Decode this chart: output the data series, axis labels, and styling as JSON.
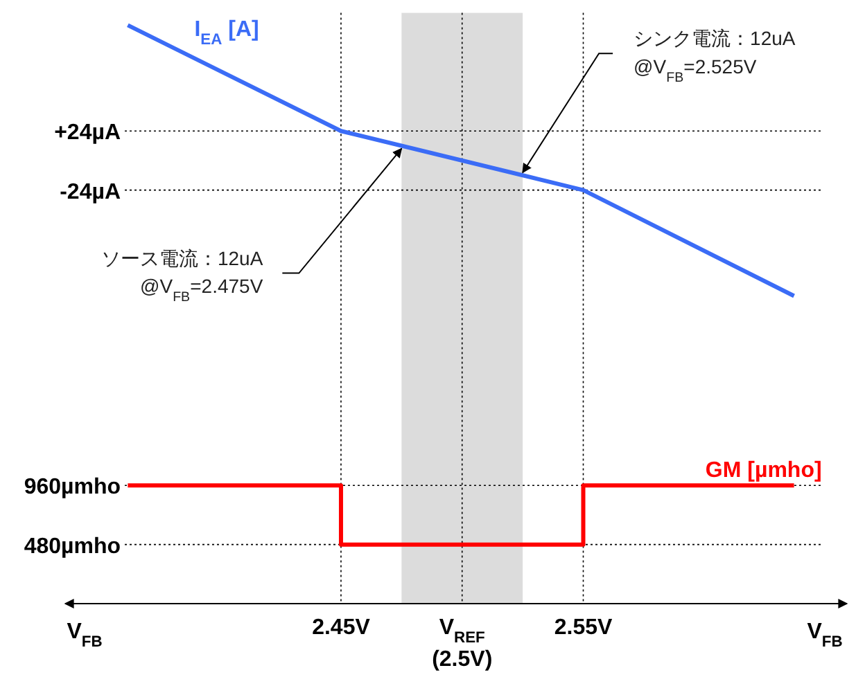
{
  "chart_data": {
    "type": "line",
    "xlim": [
      2.335,
      2.66
    ],
    "ylim": [
      -360,
      120
    ],
    "y2lim": [
      0,
      4800
    ],
    "xticks": [
      {
        "value": 2.45,
        "label": "2.45V"
      },
      {
        "value": 2.5,
        "label": "V$_{REF}$ (2.5V)"
      },
      {
        "value": 2.55,
        "label": "2.55V"
      }
    ],
    "yticks": [
      {
        "value": 24,
        "label": "+24µA"
      },
      {
        "value": -24,
        "label": "-24µA"
      }
    ],
    "y2ticks": [
      {
        "value": 960,
        "label": "960µmho"
      },
      {
        "value": 480,
        "label": "480µmho"
      }
    ],
    "grid": true,
    "xlabel": "V$_{FB}$",
    "bands": [
      {
        "axis": "x",
        "from": 2.475,
        "to": 2.525,
        "color": "#dcdcdc"
      }
    ],
    "series": [
      {
        "name": "I$_{EA}$ [A]",
        "color": "#3b6cf6",
        "x": [
          2.362,
          2.45,
          2.55,
          2.637
        ],
        "values": [
          110,
          24,
          -24,
          -110
        ]
      },
      {
        "name": "GM [µmho]",
        "type": "step",
        "axis": "y2",
        "color": "#ff0000",
        "x": [
          2.362,
          2.45,
          2.55,
          2.637
        ],
        "values": [
          960,
          480,
          960,
          960
        ]
      }
    ],
    "annotations": [
      {
        "text": "ソース電流：12uA @V$_{FB}$=2.475V",
        "x": 2.475,
        "y": 12
      },
      {
        "text": "シンク電流：12uA @V$_{FB}$=2.525V",
        "x": 2.525,
        "y": -12
      },
      "V$_{FB}$"
    ]
  }
}
